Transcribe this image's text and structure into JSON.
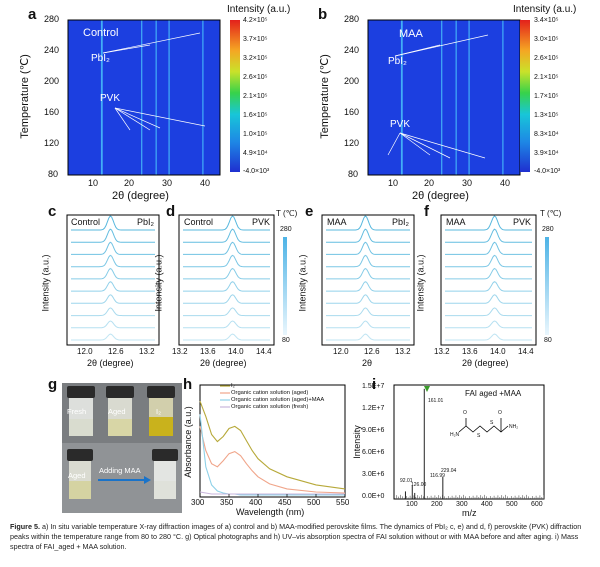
{
  "panels": {
    "a": {
      "letter": "a",
      "label": "Control",
      "cb_title": "Intensity (a.u.)",
      "cb_ticks": [
        "4.2×10⁵",
        "3.7×10⁵",
        "3.2×10⁵",
        "2.6×10⁵",
        "2.1×10⁵",
        "1.6×10⁵",
        "1.0×10⁵",
        "4.9×10⁴",
        "-4.0×10³"
      ],
      "peak_labels": [
        "PbI₂",
        "PVK"
      ],
      "xlabel": "2θ (degree)",
      "ylabel": "Temperature (℃)",
      "xticks": [
        "10",
        "20",
        "30",
        "40"
      ],
      "yticks": [
        "280",
        "240",
        "200",
        "160",
        "120",
        "80"
      ]
    },
    "b": {
      "letter": "b",
      "label": "MAA",
      "cb_title": "Intensity (a.u.)",
      "cb_ticks": [
        "3.4×10⁵",
        "3.0×10⁵",
        "2.6×10⁵",
        "2.1×10⁵",
        "1.7×10⁵",
        "1.3×10⁵",
        "8.3×10⁴",
        "3.9×10⁴",
        "-4.0×10³"
      ],
      "peak_labels": [
        "PbI₂",
        "PVK"
      ],
      "xlabel": "2θ (degree)",
      "ylabel": "Temperature (℃)",
      "xticks": [
        "10",
        "20",
        "30",
        "40"
      ],
      "yticks": [
        "280",
        "240",
        "200",
        "160",
        "120",
        "80"
      ]
    },
    "c": {
      "letter": "c",
      "left": "Control",
      "right": "PbI₂",
      "xticks": [
        "12.0",
        "12.6",
        "13.2"
      ],
      "xlabel": "2θ (degree)",
      "ylabel": "Intensity (a.u.)"
    },
    "d": {
      "letter": "d",
      "left": "Control",
      "right": "PVK",
      "xticks": [
        "13.2",
        "13.6",
        "14.0",
        "14.4"
      ],
      "xlabel": "2θ (degree)",
      "ylabel": "Intensity (a.u.)",
      "tbar_title": "T (℃)",
      "tbar_top": "280",
      "tbar_bottom": "80"
    },
    "e": {
      "letter": "e",
      "left": "MAA",
      "right": "PbI₂",
      "xticks": [
        "12.0",
        "12.6",
        "13.2"
      ],
      "xlabel": "2θ",
      "ylabel": "Intensity (a.u.)"
    },
    "f": {
      "letter": "f",
      "left": "MAA",
      "right": "PVK",
      "xticks": [
        "13.2",
        "13.6",
        "14.0",
        "14.4"
      ],
      "xlabel": "2θ (degree)",
      "ylabel": "Intensity (a.u.)",
      "tbar_title": "T (℃)",
      "tbar_top": "280",
      "tbar_bottom": "80"
    },
    "g": {
      "letter": "g",
      "vials": [
        "Fresh",
        "Aged",
        "I₂"
      ],
      "vial_before": "Aged",
      "arrow_label": "Adding MAA"
    },
    "h": {
      "letter": "h",
      "legend": [
        "I₂",
        "Organic cation solution (aged)",
        "Organic cation solution (aged)+MAA",
        "Organic cation solution (fresh)"
      ],
      "xlabel": "Wavelength (nm)",
      "ylabel": "Absorbance (a.u.)",
      "xticks": [
        "300",
        "350",
        "400",
        "450",
        "500",
        "550"
      ]
    },
    "i": {
      "letter": "i",
      "title": "FAI aged +MAA",
      "xlabel": "m/z",
      "ylabel": "Intensity",
      "yticks": [
        "1.5E+7",
        "1.2E+7",
        "9.0E+6",
        "6.0E+6",
        "3.0E+6",
        "0.0E+0"
      ],
      "xticks": [
        "100",
        "200",
        "300",
        "400",
        "500",
        "600"
      ],
      "peaks": [
        "161.01",
        "229.04",
        "116.99",
        "92.01",
        "126.00"
      ],
      "struct_labels": [
        "O",
        "O",
        "S",
        "S",
        "H₂N",
        "NH₂"
      ]
    }
  },
  "colors": {
    "heat_bg": "#1c3fe0",
    "peak": "#4fd6ff",
    "line": "#58b8de",
    "accent": "#1a73c9"
  },
  "chart_data": [
    {
      "type": "heatmap",
      "panel": "a",
      "title": "Control",
      "xlabel": "2θ (degree)",
      "ylabel": "Temperature (℃)",
      "xlim": [
        5,
        45
      ],
      "ylim": [
        80,
        280
      ],
      "peaks_2theta": [
        13.9,
        24.4,
        28.2,
        31.6,
        40.5
      ],
      "colorbar_range": [
        -4000,
        420000
      ]
    },
    {
      "type": "heatmap",
      "panel": "b",
      "title": "MAA",
      "xlabel": "2θ (degree)",
      "ylabel": "Temperature (℃)",
      "xlim": [
        5,
        45
      ],
      "ylim": [
        80,
        280
      ],
      "peaks_2theta": [
        13.9,
        24.4,
        28.2,
        31.6,
        40.5
      ],
      "colorbar_range": [
        -4000,
        340000
      ]
    },
    {
      "type": "line",
      "panel": "c",
      "series_count": 10,
      "peak_2theta": 12.6,
      "xlim": [
        11.7,
        13.5
      ]
    },
    {
      "type": "line",
      "panel": "d",
      "series_count": 10,
      "peak_2theta": 13.95,
      "xlim": [
        13.2,
        14.5
      ]
    },
    {
      "type": "line",
      "panel": "e",
      "series_count": 10,
      "peak_2theta": 12.6,
      "xlim": [
        11.7,
        13.5
      ]
    },
    {
      "type": "line",
      "panel": "f",
      "series_count": 10,
      "peak_2theta": 13.95,
      "xlim": [
        13.2,
        14.5
      ]
    },
    {
      "type": "line",
      "panel": "h",
      "xlabel": "Wavelength (nm)",
      "ylabel": "Absorbance (a.u.)",
      "xlim": [
        300,
        550
      ],
      "x": [
        300,
        310,
        320,
        330,
        340,
        350,
        360,
        370,
        380,
        390,
        400,
        420,
        450,
        500,
        550
      ],
      "series": [
        {
          "name": "I₂",
          "values": [
            0.95,
            0.8,
            0.62,
            0.55,
            0.6,
            0.68,
            0.7,
            0.66,
            0.56,
            0.46,
            0.38,
            0.28,
            0.2,
            0.12,
            0.08
          ]
        },
        {
          "name": "Organic cation solution (aged)",
          "values": [
            0.7,
            0.46,
            0.33,
            0.3,
            0.36,
            0.43,
            0.45,
            0.41,
            0.33,
            0.26,
            0.2,
            0.13,
            0.08,
            0.05,
            0.04
          ]
        },
        {
          "name": "Organic cation solution (aged)+MAA",
          "values": [
            0.82,
            0.3,
            0.12,
            0.06,
            0.04,
            0.03,
            0.03,
            0.02,
            0.02,
            0.02,
            0.02,
            0.02,
            0.02,
            0.02,
            0.02
          ]
        },
        {
          "name": "Organic cation solution (fresh)",
          "values": [
            0.05,
            0.04,
            0.03,
            0.03,
            0.03,
            0.03,
            0.03,
            0.03,
            0.03,
            0.03,
            0.03,
            0.03,
            0.03,
            0.03,
            0.03
          ]
        }
      ]
    },
    {
      "type": "bar",
      "panel": "i",
      "xlabel": "m/z",
      "ylabel": "Intensity",
      "xlim": [
        50,
        600
      ],
      "ylim": [
        0,
        15000000
      ],
      "x": [
        92.01,
        116.99,
        126.0,
        161.01,
        229.04
      ],
      "values": [
        1000000,
        1800000,
        800000,
        14500000,
        2900000
      ]
    }
  ],
  "caption": {
    "fig": "Figure 5.",
    "text": " a) In situ variable temperature X-ray diffraction images of a) control and b) MAA-modified perovskite films. The dynamics of PbI₂ c, e) and d, f) perovskite (PVK) diffraction peaks within the temperature range from 80 to 280 °C. g) Optical photographs and h) UV–vis absorption spectra of FAI solution without or with MAA before and after aging. i) Mass spectra of FAI_aged + MAA solution."
  }
}
